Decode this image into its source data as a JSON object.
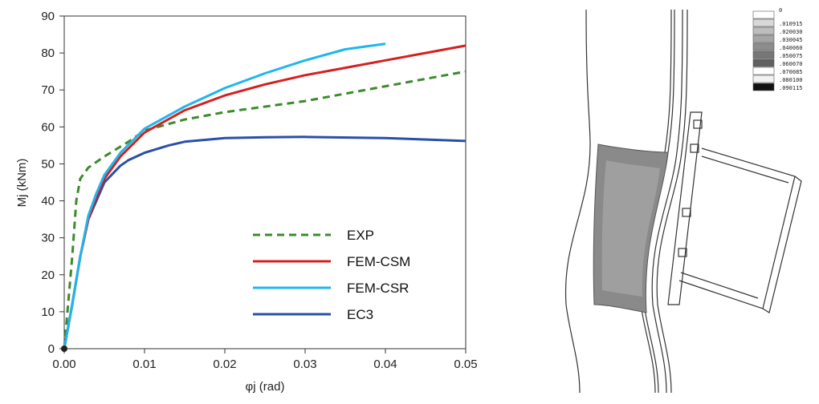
{
  "chart_data": {
    "type": "line",
    "xlabel": "φj (rad)",
    "ylabel": "Mj (kNm)",
    "xlim": [
      0,
      0.05
    ],
    "ylim": [
      0,
      90
    ],
    "x_ticks": [
      "0.00",
      "0.01",
      "0.02",
      "0.03",
      "0.04",
      "0.05"
    ],
    "y_ticks": [
      "0",
      "10",
      "20",
      "30",
      "40",
      "50",
      "60",
      "70",
      "80",
      "90"
    ],
    "grid": false,
    "legend_position": "bottom-right",
    "series": [
      {
        "name": "EXP",
        "color": "#3c8a2e",
        "style": "dashed",
        "x": [
          0,
          0.001,
          0.0015,
          0.002,
          0.003,
          0.005,
          0.008,
          0.01,
          0.015,
          0.02,
          0.03,
          0.04,
          0.05
        ],
        "y": [
          0,
          25,
          40,
          46,
          49,
          52,
          56,
          59,
          62,
          64,
          67,
          71,
          75
        ]
      },
      {
        "name": "FEM-CSM",
        "color": "#d42020",
        "style": "solid",
        "x": [
          0,
          0.001,
          0.002,
          0.003,
          0.004,
          0.005,
          0.007,
          0.01,
          0.015,
          0.02,
          0.025,
          0.03,
          0.035,
          0.04,
          0.045,
          0.05
        ],
        "y": [
          0,
          12,
          25,
          35,
          41,
          46,
          52,
          58.5,
          64.5,
          68.5,
          71.5,
          74,
          76,
          78,
          80,
          82
        ]
      },
      {
        "name": "FEM-CSR",
        "color": "#1fb6ee",
        "style": "solid",
        "x": [
          0,
          0.001,
          0.002,
          0.003,
          0.004,
          0.005,
          0.007,
          0.01,
          0.015,
          0.02,
          0.025,
          0.03,
          0.035,
          0.04
        ],
        "y": [
          0,
          12,
          25,
          36,
          42,
          47,
          53,
          59.5,
          65.5,
          70.5,
          74.5,
          78,
          81,
          82.5
        ]
      },
      {
        "name": "EC3",
        "color": "#2a4fa8",
        "style": "solid",
        "x": [
          0,
          0.001,
          0.002,
          0.003,
          0.004,
          0.005,
          0.007,
          0.008,
          0.01,
          0.013,
          0.015,
          0.02,
          0.025,
          0.03,
          0.04,
          0.05
        ],
        "y": [
          0,
          12,
          25,
          35,
          40,
          45,
          49.5,
          51,
          53,
          55,
          56,
          57,
          57.2,
          57.3,
          57,
          56.2
        ]
      }
    ]
  },
  "fem_figure": {
    "contour_legend": [
      "0",
      ".010915",
      ".020030",
      ".030045",
      ".040060",
      ".050075",
      ".060070",
      ".070085",
      ".080100",
      ".090115"
    ],
    "contour_colors": [
      "#ffffff",
      "#d8d8d8",
      "#bdbdbd",
      "#a5a5a5",
      "#8d8d8d",
      "#777777",
      "#606060",
      "#ffffff",
      "#f2f2f2",
      "#111111"
    ]
  }
}
